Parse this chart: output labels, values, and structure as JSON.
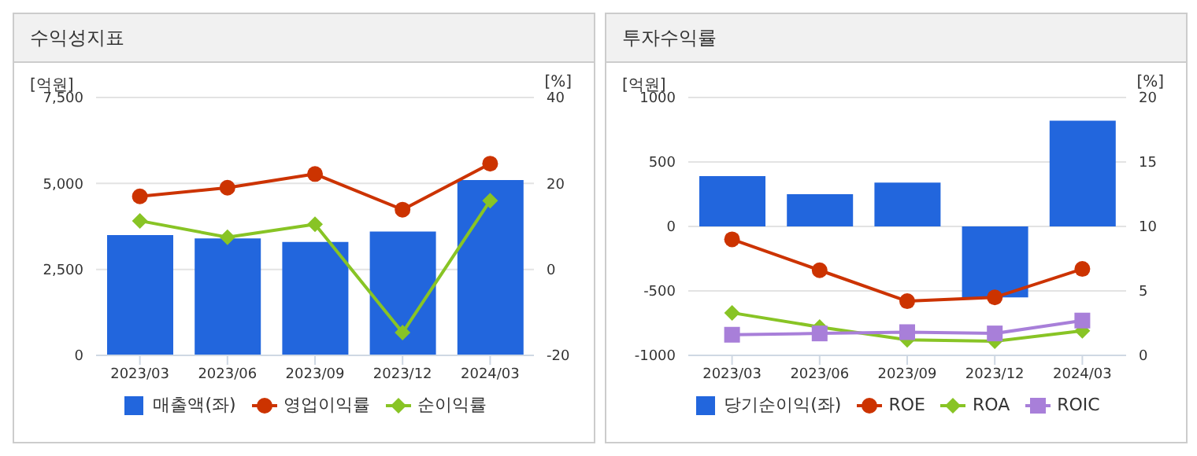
{
  "chart_data": [
    {
      "type": "bar",
      "title": "수익성지표",
      "ylabel": "[억원]",
      "y2label": "[%]",
      "categories": [
        "2023/03",
        "2023/06",
        "2023/09",
        "2023/12",
        "2024/03"
      ],
      "series": [
        {
          "name": "매출액(좌)",
          "color": "#2266dd",
          "values": [
            3500,
            3400,
            3300,
            3600,
            5100
          ]
        },
        {
          "name": "영업이익률",
          "type": "line",
          "axis": "y2",
          "marker": "circle",
          "color": "#cc3300",
          "values": [
            17,
            19,
            22.2,
            13.9,
            24.6
          ]
        },
        {
          "name": "순이익률",
          "type": "line",
          "axis": "y2",
          "marker": "diamond",
          "color": "#88c425",
          "values": [
            11.3,
            7.5,
            10.5,
            -14.7,
            16
          ]
        }
      ],
      "ylim": [
        0,
        7500
      ],
      "yticks": [
        0,
        {
          "value": 2500,
          "label": "2,500"
        },
        {
          "value": 5000,
          "label": "5,000"
        },
        {
          "value": 7500,
          "label": "7,500"
        }
      ],
      "y2lim": [
        -20,
        40
      ],
      "y2ticks": [
        -20,
        0,
        20,
        40
      ],
      "grid": "y",
      "legend": "bottom"
    },
    {
      "type": "bar",
      "title": "투자수익률",
      "ylabel": "[억원]",
      "y2label": "[%]",
      "categories": [
        "2023/03",
        "2023/06",
        "2023/09",
        "2023/12",
        "2024/03"
      ],
      "series": [
        {
          "name": "당기순이익(좌)",
          "color": "#2266dd",
          "values": [
            390,
            250,
            340,
            -550,
            820
          ]
        },
        {
          "name": "ROE",
          "type": "line",
          "axis": "y2",
          "marker": "circle",
          "color": "#cc3300",
          "values": [
            9,
            6.6,
            4.2,
            4.5,
            6.7
          ]
        },
        {
          "name": "ROA",
          "type": "line",
          "axis": "y2",
          "marker": "diamond",
          "color": "#88c425",
          "values": [
            3.3,
            2.2,
            1.2,
            1.1,
            1.9
          ]
        },
        {
          "name": "ROIC",
          "type": "line",
          "axis": "y2",
          "marker": "square",
          "color": "#a87fd9",
          "values": [
            1.6,
            1.7,
            1.8,
            1.7,
            2.7
          ]
        }
      ],
      "ylim": [
        -1000,
        1000
      ],
      "yticks": [
        -1000,
        -500,
        0,
        500,
        1000
      ],
      "y2lim": [
        0,
        20
      ],
      "y2ticks": [
        0,
        5,
        10,
        15,
        20
      ],
      "grid": "y",
      "legend": "bottom"
    }
  ]
}
